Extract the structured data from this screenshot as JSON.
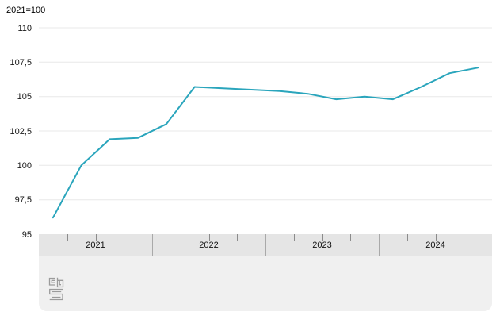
{
  "title": "2021=100",
  "chart_data": {
    "type": "line",
    "title": "2021=100",
    "categories": [
      "2021-Q1",
      "2021-Q2",
      "2021-Q3",
      "2021-Q4",
      "2022-Q1",
      "2022-Q2",
      "2022-Q3",
      "2022-Q4",
      "2023-Q1",
      "2023-Q2",
      "2023-Q3",
      "2023-Q4",
      "2024-Q1",
      "2024-Q2",
      "2024-Q3",
      "2024-Q4"
    ],
    "values": [
      96.2,
      100.0,
      101.9,
      102.0,
      103.0,
      105.7,
      105.6,
      105.5,
      105.4,
      105.2,
      104.8,
      105.0,
      104.8,
      105.7,
      106.7,
      107.1
    ],
    "years": [
      "2021",
      "2022",
      "2023",
      "2024"
    ],
    "y_ticks": [
      "110",
      "107,5",
      "105",
      "102,5",
      "100",
      "97,5",
      "95"
    ],
    "y_tick_values": [
      110,
      107.5,
      105,
      102.5,
      100,
      97.5,
      95
    ],
    "ylim": [
      95,
      110
    ],
    "xlabel": "",
    "ylabel": "",
    "grid": true,
    "legend": "none",
    "line_color": "#2aa5bc",
    "line_width": 2
  },
  "colors": {
    "gridline": "#e8e8e8",
    "axis_band": "#e5e5e5",
    "footer_band": "#f0f0f0",
    "tick": "#8c8c8c",
    "year_divider": "#a9a9a9",
    "label_text": "#1a1a1a",
    "logo": "#9b9b9b"
  },
  "footer": {
    "logo_name": "cbs-logo"
  }
}
